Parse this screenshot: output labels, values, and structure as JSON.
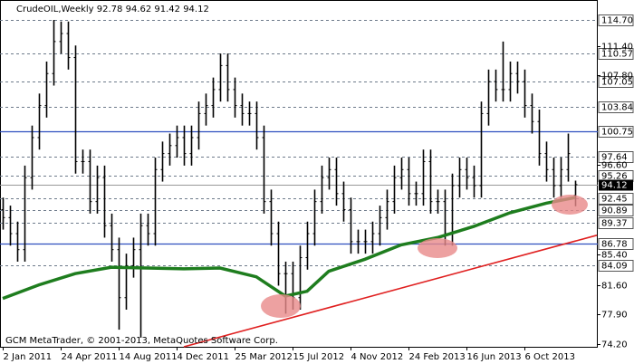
{
  "chart_data": {
    "type": "ohlc",
    "title": "CrudeOIL,Weekly  92.78 94.62 91.42 94.12",
    "footer": "GCM MetaTrader, © 2001-2013, MetaQuotes Software Corp.",
    "color": "#000000",
    "xlim": [
      -0.75,
      164.25
    ],
    "ylim": [
      73.86,
      117.19
    ],
    "xticks": [
      {
        "value": 0,
        "label": "2 Jan 2011"
      },
      {
        "value": 16,
        "label": "24 Apr 2011"
      },
      {
        "value": 32,
        "label": "14 Aug 2011"
      },
      {
        "value": 48,
        "label": "4 Dec 2011"
      },
      {
        "value": 64,
        "label": "25 Mar 2012"
      },
      {
        "value": 80,
        "label": "15 Jul 2012"
      },
      {
        "value": 96,
        "label": "4 Nov 2012"
      },
      {
        "value": 112,
        "label": "24 Feb 2013"
      },
      {
        "value": 128,
        "label": "16 Jun 2013"
      },
      {
        "value": 144,
        "label": "6 Oct 2013"
      }
    ],
    "yticks": [
      {
        "value": 74.2,
        "label": "74.20"
      },
      {
        "value": 77.9,
        "label": "77.90"
      },
      {
        "value": 81.6,
        "label": "81.60"
      },
      {
        "value": 85.4,
        "label": "85.40"
      },
      {
        "value": 96.6,
        "label": "96.60"
      },
      {
        "value": 107.8,
        "label": "107.80"
      },
      {
        "value": 111.4,
        "label": "111.40"
      }
    ],
    "levels": [
      {
        "value": 114.7,
        "label": "114.70",
        "line": "dashed",
        "color": "#6e7b8b"
      },
      {
        "value": 110.57,
        "label": "110.57",
        "line": "dashed",
        "color": "#6e7b8b"
      },
      {
        "value": 107.05,
        "label": "107.05",
        "line": "dashed",
        "color": "#6e7b8b"
      },
      {
        "value": 103.84,
        "label": "103.84",
        "line": "dashed",
        "color": "#6e7b8b"
      },
      {
        "value": 100.75,
        "label": "100.75",
        "line": "solid",
        "color": "#2f4fbf"
      },
      {
        "value": 97.64,
        "label": "97.64",
        "line": "dashed",
        "color": "#6e7b8b"
      },
      {
        "value": 95.26,
        "label": "95.26",
        "line": "dashed",
        "color": "#6e7b8b"
      },
      {
        "value": 92.45,
        "label": "92.45",
        "line": "dashed",
        "color": "#6e7b8b"
      },
      {
        "value": 90.89,
        "label": "90.89",
        "line": "dashed",
        "color": "#6e7b8b"
      },
      {
        "value": 89.37,
        "label": "89.37",
        "line": "dashed",
        "color": "#6e7b8b"
      },
      {
        "value": 86.78,
        "label": "86.78",
        "line": "solid",
        "color": "#2f4fbf"
      },
      {
        "value": 84.09,
        "label": "84.09",
        "line": "dashed",
        "color": "#6e7b8b"
      }
    ],
    "current_price": {
      "value": 94.12,
      "label": "94.12"
    },
    "x": [
      0,
      2,
      4,
      6,
      8,
      10,
      12,
      14,
      16,
      18,
      20,
      22,
      24,
      26,
      28,
      30,
      32,
      34,
      36,
      38,
      40,
      42,
      44,
      46,
      48,
      50,
      52,
      54,
      56,
      58,
      60,
      62,
      64,
      66,
      68,
      70,
      72,
      74,
      76,
      78,
      80,
      82,
      84,
      86,
      88,
      90,
      92,
      94,
      96,
      98,
      100,
      102,
      104,
      106,
      108,
      110,
      112,
      114,
      116,
      118,
      120,
      122,
      124,
      126,
      128,
      130,
      132,
      134,
      136,
      138,
      140,
      142,
      144,
      146,
      148,
      150,
      152,
      154,
      156,
      158
    ],
    "open": [
      91,
      90,
      88,
      86,
      95,
      100,
      104,
      108,
      112,
      113,
      110,
      97,
      97,
      92,
      95,
      89,
      86,
      80,
      84,
      86,
      89,
      88,
      96,
      98,
      99,
      100,
      98,
      100,
      103,
      104,
      106,
      109,
      106,
      104,
      103,
      103,
      100,
      92,
      88,
      83,
      83,
      80,
      85,
      88,
      92,
      95,
      96,
      93,
      91,
      87,
      87,
      87,
      88,
      90,
      92,
      95,
      96,
      93,
      93,
      97,
      92,
      92,
      88,
      94,
      96,
      95,
      94,
      103,
      107,
      106,
      106,
      108,
      107,
      104,
      102,
      98,
      96,
      94,
      96,
      92.78
    ],
    "high": [
      92.5,
      91.5,
      89.5,
      96.5,
      101.5,
      105.5,
      109.5,
      114.7,
      114.5,
      114.5,
      111.5,
      98.5,
      98.5,
      96.5,
      96.5,
      90.5,
      87.5,
      85.5,
      87.5,
      90.5,
      90.5,
      97.5,
      99.5,
      100.5,
      101.5,
      101.5,
      101.5,
      104.5,
      105.5,
      107.5,
      110.5,
      110.5,
      107.5,
      105.5,
      104.5,
      104.5,
      101.5,
      93.5,
      89.5,
      84.5,
      84.5,
      86.5,
      89.5,
      93.5,
      96.5,
      97.5,
      97.5,
      94.5,
      92.5,
      88.5,
      88.5,
      89.5,
      91.5,
      93.5,
      96.5,
      97.5,
      97.5,
      94.5,
      98.5,
      98.5,
      93.5,
      93.5,
      95.5,
      97.5,
      97.5,
      96.5,
      104.5,
      108.5,
      108.5,
      112,
      109.5,
      109.5,
      108.5,
      105.5,
      103.5,
      99.5,
      97.5,
      97.5,
      100.5,
      94.62
    ],
    "low": [
      88.5,
      86.5,
      84.5,
      84.5,
      93.5,
      98.5,
      102.5,
      106.5,
      110.5,
      108.5,
      95.5,
      95.5,
      90.5,
      90.5,
      87.5,
      84.5,
      76,
      78.5,
      82.5,
      75,
      86.5,
      86.5,
      94.5,
      96.5,
      97.5,
      96.5,
      96.5,
      98.5,
      101.5,
      102.5,
      104.5,
      104.5,
      102.5,
      101.5,
      101.5,
      98.5,
      90.5,
      86.5,
      81.5,
      78,
      78.5,
      78.5,
      83.5,
      86.5,
      90.5,
      93.5,
      91.5,
      89.5,
      85.5,
      85.5,
      85.5,
      85.5,
      86.5,
      88.5,
      90.5,
      93.5,
      91.5,
      91.5,
      91.5,
      90.5,
      90.5,
      86.5,
      86.5,
      92.5,
      93.5,
      92.5,
      92.5,
      101.5,
      104.5,
      104.5,
      104.5,
      105.5,
      102.5,
      100.5,
      96.5,
      94.5,
      92.5,
      92.5,
      94.5,
      91.42
    ],
    "close": [
      90,
      88,
      86,
      95,
      100,
      104,
      108,
      112,
      113,
      110,
      97,
      97,
      92,
      95,
      89,
      86,
      80,
      84,
      86,
      89,
      88,
      96,
      98,
      99,
      100,
      98,
      100,
      103,
      104,
      106,
      109,
      106,
      104,
      103,
      103,
      100,
      92,
      88,
      83,
      83,
      80,
      85,
      88,
      92,
      95,
      96,
      93,
      91,
      87,
      87,
      87,
      88,
      90,
      92,
      95,
      96,
      93,
      93,
      97,
      92,
      92,
      88,
      94,
      96,
      95,
      94,
      103,
      107,
      106,
      106,
      108,
      107,
      104,
      102,
      98,
      96,
      94,
      96,
      98,
      94.12
    ],
    "moving_average": {
      "color": "#1e7d1e",
      "x": [
        0,
        10,
        20,
        30,
        40,
        50,
        60,
        70,
        78,
        84,
        90,
        100,
        110,
        120,
        130,
        140,
        150,
        158
      ],
      "values": [
        79.9,
        81.6,
        83.0,
        83.8,
        83.7,
        83.6,
        83.7,
        82.6,
        80.2,
        80.8,
        83.3,
        84.8,
        86.6,
        87.5,
        88.9,
        90.6,
        91.8,
        92.5
      ]
    },
    "trendline": {
      "color": "#e02020",
      "x": [
        50,
        164
      ],
      "values": [
        73.86,
        87.8
      ]
    }
  }
}
